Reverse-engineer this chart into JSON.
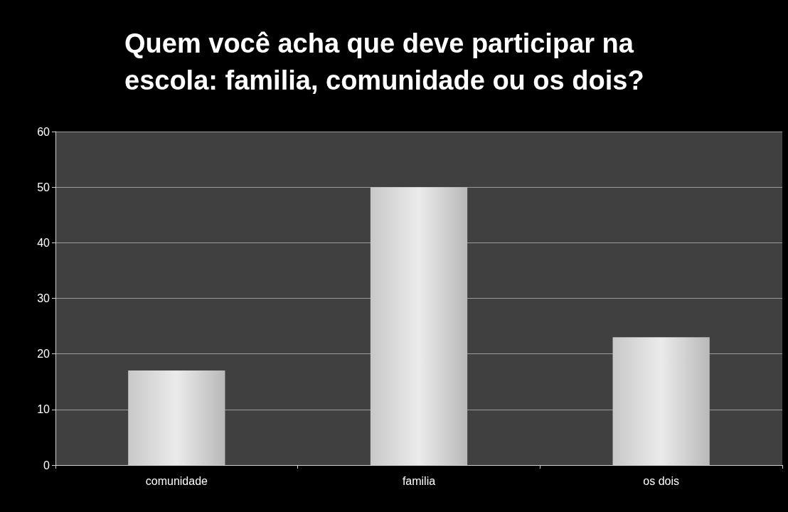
{
  "chart_data": {
    "type": "bar",
    "title": "Quem você acha que deve participar na\nescola: familia, comunidade ou os dois?",
    "categories": [
      "comunidade",
      "familia",
      "os dois"
    ],
    "values": [
      17,
      50,
      23
    ],
    "color": "#ebebeb",
    "ylim": [
      0,
      60
    ],
    "yticks": [
      0,
      10,
      20,
      30,
      40,
      50,
      60
    ],
    "grid": "y"
  }
}
